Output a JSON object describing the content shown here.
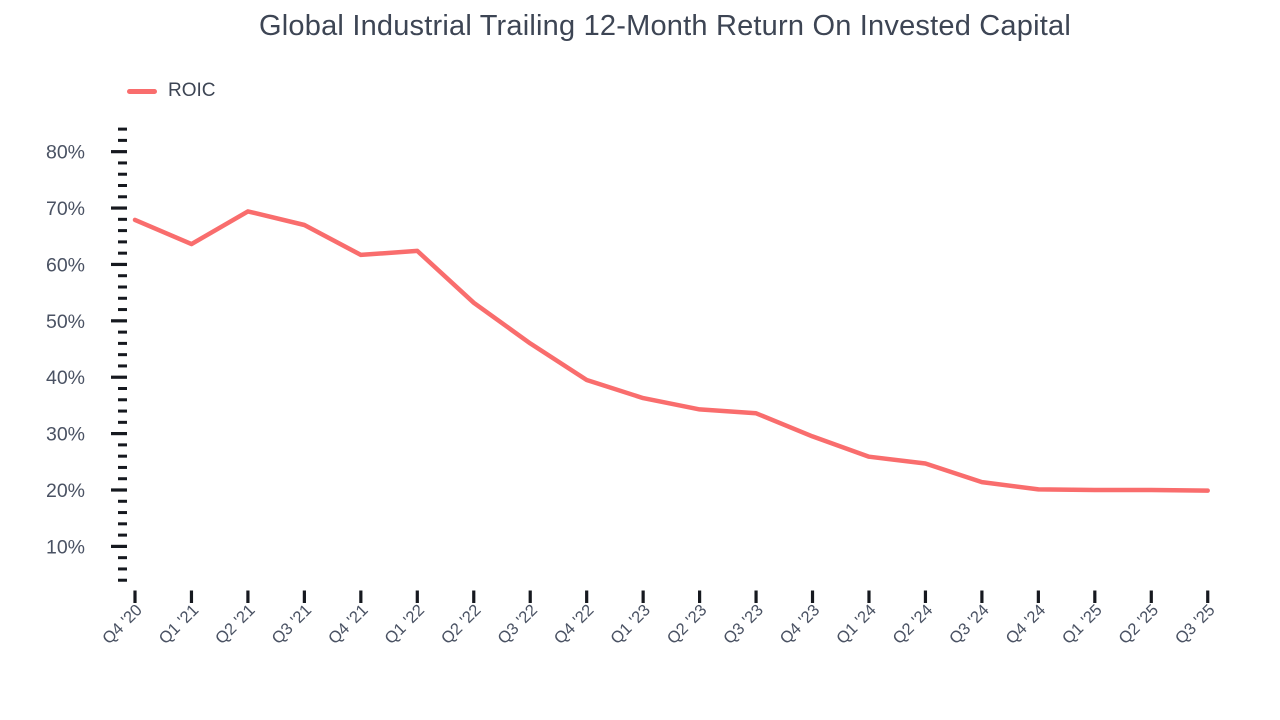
{
  "page": {
    "background": "#ffffff"
  },
  "legend": {
    "position": "top-left",
    "items": [
      {
        "label": "ROIC",
        "color": "#F96D6D"
      }
    ]
  },
  "chart_data": {
    "type": "line",
    "title": "Global Industrial Trailing 12-Month Return On Invested Capital",
    "title_color": "#3d4554",
    "categories": [
      "Q4 '20",
      "Q1 '21",
      "Q2 '21",
      "Q3 '21",
      "Q4 '21",
      "Q1 '22",
      "Q2 '22",
      "Q3 '22",
      "Q4 '22",
      "Q1 '23",
      "Q2 '23",
      "Q3 '23",
      "Q4 '23",
      "Q1 '24",
      "Q2 '24",
      "Q3 '24",
      "Q4 '24",
      "Q1 '25",
      "Q2 '25",
      "Q3 '25"
    ],
    "series": [
      {
        "name": "ROIC",
        "color": "#F96D6D",
        "values": [
          67.9,
          63.6,
          69.4,
          67.0,
          61.7,
          62.4,
          53.2,
          46.0,
          39.5,
          36.3,
          34.3,
          33.6,
          29.5,
          25.9,
          24.7,
          21.4,
          20.1,
          20.0,
          20.0,
          19.9
        ]
      }
    ],
    "xlabel": "",
    "ylabel": "",
    "y_axis": {
      "unit": "%",
      "major_ticks": [
        80,
        70,
        60,
        50,
        40,
        30,
        20,
        10
      ],
      "minor_tick_step": 2,
      "minor_tick_min": 4,
      "minor_tick_max": 84,
      "tick_color": "#16191f",
      "label_color": "#4a5263"
    },
    "x_axis": {
      "tick_color": "#16191f",
      "label_color": "#4a5263",
      "label_rotation": -45
    },
    "grid": false,
    "legend_position": "top-left"
  }
}
